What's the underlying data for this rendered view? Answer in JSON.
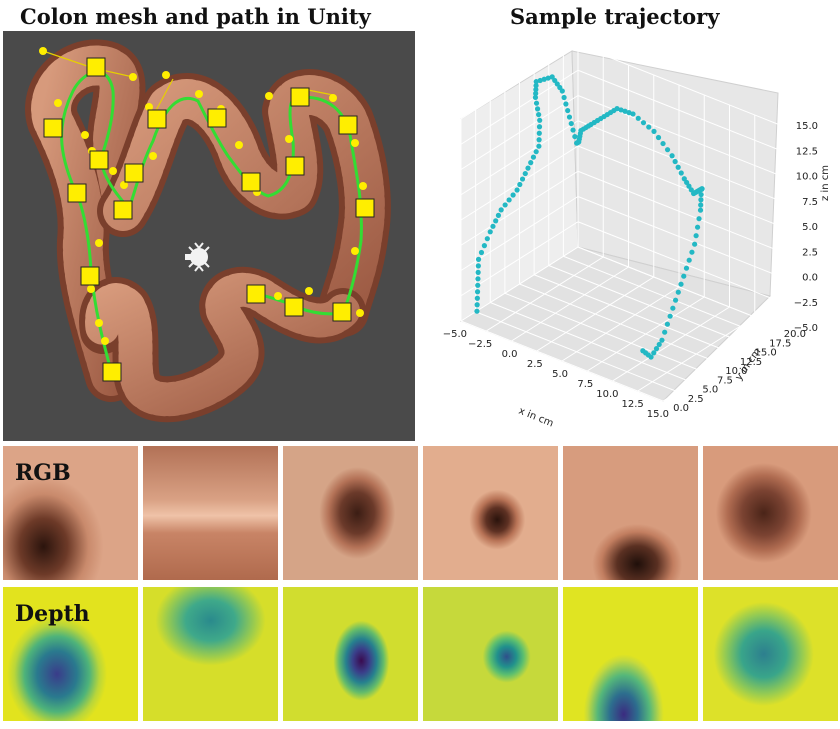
{
  "titles": {
    "left": "Colon mesh and path in Unity",
    "right": "Sample trajectory"
  },
  "rows": {
    "rgb_label": "RGB",
    "depth_label": "Depth"
  },
  "icons": {
    "camera": "camera-icon",
    "waypoint": "waypoint-marker-icon"
  },
  "colors": {
    "unity_background": "#4a4a4a",
    "colon_mesh": "#c98a6c",
    "path_line": "#33dd33",
    "waypoint": "#ffee00",
    "trajectory": "#23b8c4"
  },
  "chart_data": {
    "type": "scatter",
    "projection": "3d",
    "title": "Sample trajectory",
    "xlabel": "x in cm",
    "ylabel": "y in cm",
    "zlabel": "z in cm",
    "xlim": [
      -5,
      15
    ],
    "ylim": [
      0,
      20
    ],
    "zlim": [
      -5,
      15
    ],
    "x_ticks": [
      "−5.0",
      "−2.5",
      "0.0",
      "2.5",
      "5.0",
      "7.5",
      "10.0",
      "12.5",
      "15.0"
    ],
    "y_ticks": [
      "0.0",
      "2.5",
      "5.0",
      "7.5",
      "10.0",
      "12.5",
      "15.0",
      "17.5",
      "20.0"
    ],
    "z_ticks": [
      "−5.0",
      "−2.5",
      "0.0",
      "2.5",
      "5.0",
      "7.5",
      "10.0",
      "12.5",
      "15.0"
    ],
    "grid": true,
    "series": [
      {
        "x": [
          -4,
          -4.5,
          -5,
          -5,
          -4.5,
          -3.5,
          -3,
          -2.5,
          -3,
          -4,
          -4.5,
          -3.5,
          -2.5,
          -1.5,
          -0.5,
          0,
          0.5,
          1.5,
          2.5,
          3.5,
          4.5,
          6,
          7.5,
          9,
          10.5,
          11.5,
          12.5,
          13,
          13.5,
          13.5,
          13,
          12.5,
          12,
          11.5,
          11
        ],
        "y": [
          1,
          2,
          3,
          5,
          6,
          7,
          8,
          9,
          10,
          11,
          12,
          13,
          13,
          12.5,
          12,
          11.5,
          11,
          11,
          11.5,
          12,
          13,
          14,
          14.5,
          14,
          13,
          12,
          11,
          10,
          9,
          8,
          7,
          6,
          5,
          4,
          3
        ],
        "z": [
          -4,
          -2,
          0,
          2,
          4,
          6,
          8,
          10,
          12,
          13.5,
          14.5,
          15,
          14,
          12,
          10,
          10.5,
          12,
          13,
          14,
          15,
          14.5,
          13,
          11,
          9.5,
          9,
          10,
          11,
          11.5,
          10,
          7,
          4,
          1,
          -2,
          -3.5,
          -2.5
        ]
      }
    ]
  }
}
